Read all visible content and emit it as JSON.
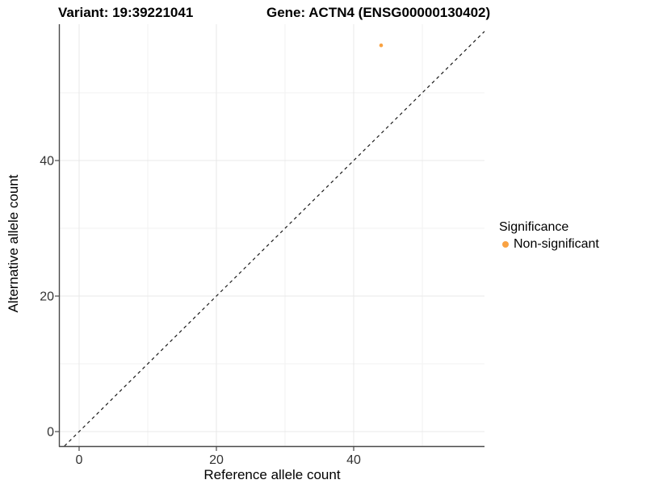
{
  "chart_data": {
    "type": "scatter",
    "title_left": "Variant: 19:39221041",
    "title_right": "Gene: ACTN4 (ENSG00000130402)",
    "xlabel": "Reference allele count",
    "ylabel": "Alternative allele count",
    "xlim": [
      -2.82,
      59.06
    ],
    "ylim": [
      -2.14,
      60.12
    ],
    "x_major_ticks": [
      0,
      20,
      40
    ],
    "y_major_ticks": [
      0,
      20,
      40
    ],
    "x_minor_gridlines": [
      10,
      30,
      50
    ],
    "y_minor_gridlines": [
      10,
      30,
      50
    ],
    "grid": "major and minor, light gray on white",
    "identity_line": {
      "slope": 1,
      "intercept": 0,
      "style": "dashed",
      "color": "#1a1a1a"
    },
    "series": [
      {
        "name": "Non-significant",
        "color": "#F9A242",
        "points": [
          {
            "x": 44,
            "y": 57
          }
        ]
      }
    ],
    "legend": {
      "title": "Significance",
      "position": "right"
    },
    "colors": {
      "point": "#F9A242",
      "grid_major": "#e8e8e8",
      "grid_minor": "#f2f2f2",
      "axis_line": "#4a4a4a",
      "tick_text": "#333333",
      "background": "#ffffff"
    }
  }
}
